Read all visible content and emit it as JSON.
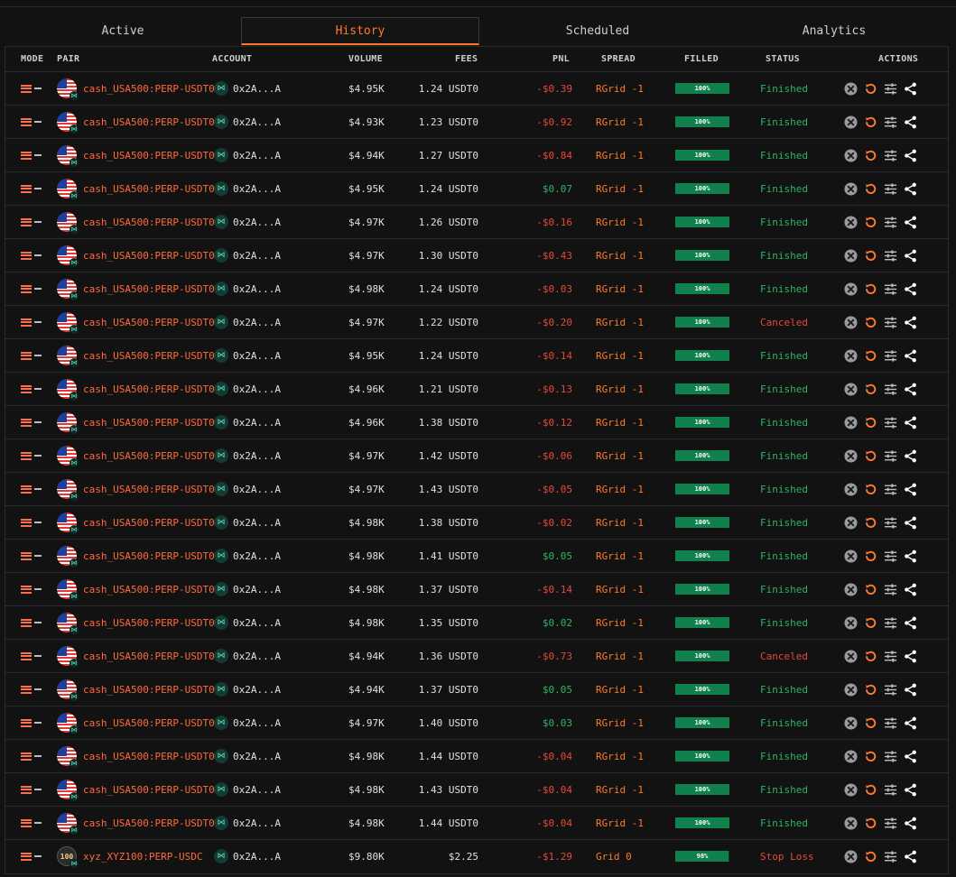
{
  "tabs": [
    {
      "label": "Active",
      "active": false
    },
    {
      "label": "History",
      "active": true
    },
    {
      "label": "Scheduled",
      "active": false
    },
    {
      "label": "Analytics",
      "active": false
    }
  ],
  "columns": {
    "mode": "MODE",
    "pair": "PAIR",
    "account": "ACCOUNT",
    "volume": "VOLUME",
    "fees": "FEES",
    "pnl": "PNL",
    "spread": "SPREAD",
    "filled": "FILLED",
    "status": "STATUS",
    "actions": "ACTIONS"
  },
  "colors": {
    "accent": "#ff7a2e",
    "positive": "#2fb463",
    "negative": "#e8473b",
    "filled_bar": "#10804c"
  },
  "rows": [
    {
      "icon": "us-flag-icon",
      "pair": "cash_USA500:PERP-USDT0",
      "account": "0x2A...A",
      "volume": "$4.95K",
      "fees": "1.24 USDT0",
      "pnl": "-$0.39",
      "spread": "RGrid -1",
      "filled": "100%",
      "filled_pct": 1.0,
      "status": "Finished"
    },
    {
      "icon": "us-flag-icon",
      "pair": "cash_USA500:PERP-USDT0",
      "account": "0x2A...A",
      "volume": "$4.93K",
      "fees": "1.23 USDT0",
      "pnl": "-$0.92",
      "spread": "RGrid -1",
      "filled": "100%",
      "filled_pct": 1.0,
      "status": "Finished"
    },
    {
      "icon": "us-flag-icon",
      "pair": "cash_USA500:PERP-USDT0",
      "account": "0x2A...A",
      "volume": "$4.94K",
      "fees": "1.27 USDT0",
      "pnl": "-$0.84",
      "spread": "RGrid -1",
      "filled": "100%",
      "filled_pct": 1.0,
      "status": "Finished"
    },
    {
      "icon": "us-flag-icon",
      "pair": "cash_USA500:PERP-USDT0",
      "account": "0x2A...A",
      "volume": "$4.95K",
      "fees": "1.24 USDT0",
      "pnl": "$0.07",
      "spread": "RGrid -1",
      "filled": "100%",
      "filled_pct": 1.0,
      "status": "Finished"
    },
    {
      "icon": "us-flag-icon",
      "pair": "cash_USA500:PERP-USDT0",
      "account": "0x2A...A",
      "volume": "$4.97K",
      "fees": "1.26 USDT0",
      "pnl": "-$0.16",
      "spread": "RGrid -1",
      "filled": "100%",
      "filled_pct": 1.0,
      "status": "Finished"
    },
    {
      "icon": "us-flag-icon",
      "pair": "cash_USA500:PERP-USDT0",
      "account": "0x2A...A",
      "volume": "$4.97K",
      "fees": "1.30 USDT0",
      "pnl": "-$0.43",
      "spread": "RGrid -1",
      "filled": "100%",
      "filled_pct": 1.0,
      "status": "Finished"
    },
    {
      "icon": "us-flag-icon",
      "pair": "cash_USA500:PERP-USDT0",
      "account": "0x2A...A",
      "volume": "$4.98K",
      "fees": "1.24 USDT0",
      "pnl": "-$0.03",
      "spread": "RGrid -1",
      "filled": "100%",
      "filled_pct": 1.0,
      "status": "Finished"
    },
    {
      "icon": "us-flag-icon",
      "pair": "cash_USA500:PERP-USDT0",
      "account": "0x2A...A",
      "volume": "$4.97K",
      "fees": "1.22 USDT0",
      "pnl": "-$0.20",
      "spread": "RGrid -1",
      "filled": "100%",
      "filled_pct": 1.0,
      "status": "Canceled"
    },
    {
      "icon": "us-flag-icon",
      "pair": "cash_USA500:PERP-USDT0",
      "account": "0x2A...A",
      "volume": "$4.95K",
      "fees": "1.24 USDT0",
      "pnl": "-$0.14",
      "spread": "RGrid -1",
      "filled": "100%",
      "filled_pct": 1.0,
      "status": "Finished"
    },
    {
      "icon": "us-flag-icon",
      "pair": "cash_USA500:PERP-USDT0",
      "account": "0x2A...A",
      "volume": "$4.96K",
      "fees": "1.21 USDT0",
      "pnl": "-$0.13",
      "spread": "RGrid -1",
      "filled": "100%",
      "filled_pct": 1.0,
      "status": "Finished"
    },
    {
      "icon": "us-flag-icon",
      "pair": "cash_USA500:PERP-USDT0",
      "account": "0x2A...A",
      "volume": "$4.96K",
      "fees": "1.38 USDT0",
      "pnl": "-$0.12",
      "spread": "RGrid -1",
      "filled": "100%",
      "filled_pct": 1.0,
      "status": "Finished"
    },
    {
      "icon": "us-flag-icon",
      "pair": "cash_USA500:PERP-USDT0",
      "account": "0x2A...A",
      "volume": "$4.97K",
      "fees": "1.42 USDT0",
      "pnl": "-$0.06",
      "spread": "RGrid -1",
      "filled": "100%",
      "filled_pct": 1.0,
      "status": "Finished"
    },
    {
      "icon": "us-flag-icon",
      "pair": "cash_USA500:PERP-USDT0",
      "account": "0x2A...A",
      "volume": "$4.97K",
      "fees": "1.43 USDT0",
      "pnl": "-$0.05",
      "spread": "RGrid -1",
      "filled": "100%",
      "filled_pct": 1.0,
      "status": "Finished"
    },
    {
      "icon": "us-flag-icon",
      "pair": "cash_USA500:PERP-USDT0",
      "account": "0x2A...A",
      "volume": "$4.98K",
      "fees": "1.38 USDT0",
      "pnl": "-$0.02",
      "spread": "RGrid -1",
      "filled": "100%",
      "filled_pct": 1.0,
      "status": "Finished"
    },
    {
      "icon": "us-flag-icon",
      "pair": "cash_USA500:PERP-USDT0",
      "account": "0x2A...A",
      "volume": "$4.98K",
      "fees": "1.41 USDT0",
      "pnl": "$0.05",
      "spread": "RGrid -1",
      "filled": "100%",
      "filled_pct": 1.0,
      "status": "Finished"
    },
    {
      "icon": "us-flag-icon",
      "pair": "cash_USA500:PERP-USDT0",
      "account": "0x2A...A",
      "volume": "$4.98K",
      "fees": "1.37 USDT0",
      "pnl": "-$0.14",
      "spread": "RGrid -1",
      "filled": "100%",
      "filled_pct": 1.0,
      "status": "Finished"
    },
    {
      "icon": "us-flag-icon",
      "pair": "cash_USA500:PERP-USDT0",
      "account": "0x2A...A",
      "volume": "$4.98K",
      "fees": "1.35 USDT0",
      "pnl": "$0.02",
      "spread": "RGrid -1",
      "filled": "100%",
      "filled_pct": 1.0,
      "status": "Finished"
    },
    {
      "icon": "us-flag-icon",
      "pair": "cash_USA500:PERP-USDT0",
      "account": "0x2A...A",
      "volume": "$4.94K",
      "fees": "1.36 USDT0",
      "pnl": "-$0.73",
      "spread": "RGrid -1",
      "filled": "100%",
      "filled_pct": 1.0,
      "status": "Canceled"
    },
    {
      "icon": "us-flag-icon",
      "pair": "cash_USA500:PERP-USDT0",
      "account": "0x2A...A",
      "volume": "$4.94K",
      "fees": "1.37 USDT0",
      "pnl": "$0.05",
      "spread": "RGrid -1",
      "filled": "100%",
      "filled_pct": 1.0,
      "status": "Finished"
    },
    {
      "icon": "us-flag-icon",
      "pair": "cash_USA500:PERP-USDT0",
      "account": "0x2A...A",
      "volume": "$4.97K",
      "fees": "1.40 USDT0",
      "pnl": "$0.03",
      "spread": "RGrid -1",
      "filled": "100%",
      "filled_pct": 1.0,
      "status": "Finished"
    },
    {
      "icon": "us-flag-icon",
      "pair": "cash_USA500:PERP-USDT0",
      "account": "0x2A...A",
      "volume": "$4.98K",
      "fees": "1.44 USDT0",
      "pnl": "-$0.04",
      "spread": "RGrid -1",
      "filled": "100%",
      "filled_pct": 1.0,
      "status": "Finished"
    },
    {
      "icon": "us-flag-icon",
      "pair": "cash_USA500:PERP-USDT0",
      "account": "0x2A...A",
      "volume": "$4.98K",
      "fees": "1.43 USDT0",
      "pnl": "-$0.04",
      "spread": "RGrid -1",
      "filled": "100%",
      "filled_pct": 1.0,
      "status": "Finished"
    },
    {
      "icon": "us-flag-icon",
      "pair": "cash_USA500:PERP-USDT0",
      "account": "0x2A...A",
      "volume": "$4.98K",
      "fees": "1.44 USDT0",
      "pnl": "-$0.04",
      "spread": "RGrid -1",
      "filled": "100%",
      "filled_pct": 1.0,
      "status": "Finished"
    },
    {
      "icon": "xyz100-icon",
      "icon_text": "100",
      "pair": "xyz_XYZ100:PERP-USDC",
      "account": "0x2A...A",
      "volume": "$9.80K",
      "fees": "$2.25",
      "pnl": "-$1.29",
      "spread": "Grid 0",
      "filled": "98%",
      "filled_pct": 0.98,
      "status": "Stop Loss"
    }
  ]
}
